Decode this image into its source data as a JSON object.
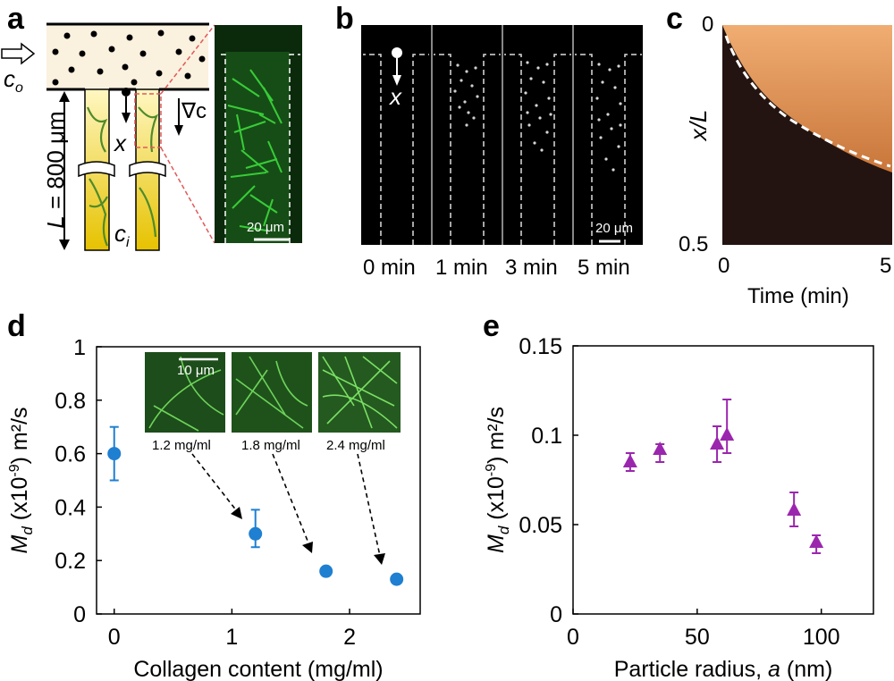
{
  "panels": {
    "a": {
      "label": "a",
      "c_outer": "c",
      "c_outer_sub": "o",
      "c_inner": "c",
      "c_inner_sub": "i",
      "length_prefix": "L",
      "length_value": " = 800 μm",
      "x_label": "x",
      "grad_label": "∇c",
      "scale_bar": "20 μm"
    },
    "b": {
      "label": "b",
      "x_label": "x",
      "times": [
        "0 min",
        "1 min",
        "3 min",
        "5 min"
      ],
      "scale_bar": "20 μm"
    },
    "c": {
      "label": "c",
      "ylabel": "x/L",
      "xlabel": "Time (min)",
      "y_ticks": [
        "0",
        "0.5"
      ],
      "x_ticks": [
        "0",
        "5"
      ]
    },
    "d": {
      "label": "d",
      "inset_scale_bar": "10 μm",
      "inset_labels": [
        "1.2 mg/ml",
        "1.8 mg/ml",
        "2.4 mg/ml"
      ]
    },
    "e": {
      "label": "e"
    }
  },
  "chart_data": [
    {
      "id": "d",
      "type": "scatter",
      "xlabel": "Collagen content (mg/ml)",
      "ylabel_main": "M",
      "ylabel_sub": "d",
      "ylabel_rest": " (x10",
      "ylabel_exp": "-9",
      "ylabel_tail": ") m²/s",
      "x_ticks": [
        "0",
        "1",
        "2"
      ],
      "y_ticks": [
        "0",
        "0.2",
        "0.4",
        "0.6",
        "0.8",
        "1"
      ],
      "xlim": [
        -0.15,
        2.6
      ],
      "ylim": [
        0,
        1
      ],
      "x": [
        0,
        1.2,
        1.8,
        2.4
      ],
      "y": [
        0.6,
        0.3,
        0.16,
        0.13
      ],
      "yerr_low": [
        0.5,
        0.25,
        null,
        null
      ],
      "yerr_high": [
        0.7,
        0.39,
        null,
        null
      ],
      "color": "#1f7fd1"
    },
    {
      "id": "e",
      "type": "scatter",
      "xlabel": "Particle radius, ",
      "xlabel_var": "a",
      "xlabel_unit": " (nm)",
      "ylabel_main": "M",
      "ylabel_sub": "d",
      "ylabel_rest": " (x10",
      "ylabel_exp": "-9",
      "ylabel_tail": ") m²/s",
      "x_ticks": [
        "0",
        "50",
        "100"
      ],
      "y_ticks": [
        "0",
        "0.05",
        "0.1",
        "0.15"
      ],
      "xlim": [
        0,
        121
      ],
      "ylim": [
        0,
        0.15
      ],
      "x": [
        23,
        35,
        58,
        62,
        89,
        98
      ],
      "y": [
        0.085,
        0.092,
        0.095,
        0.1,
        0.058,
        0.04
      ],
      "yerr_low": [
        0.08,
        0.085,
        0.085,
        0.09,
        0.049,
        0.034
      ],
      "yerr_high": [
        0.09,
        0.095,
        0.105,
        0.12,
        0.068,
        0.044
      ],
      "color": "#9b26ae"
    }
  ]
}
